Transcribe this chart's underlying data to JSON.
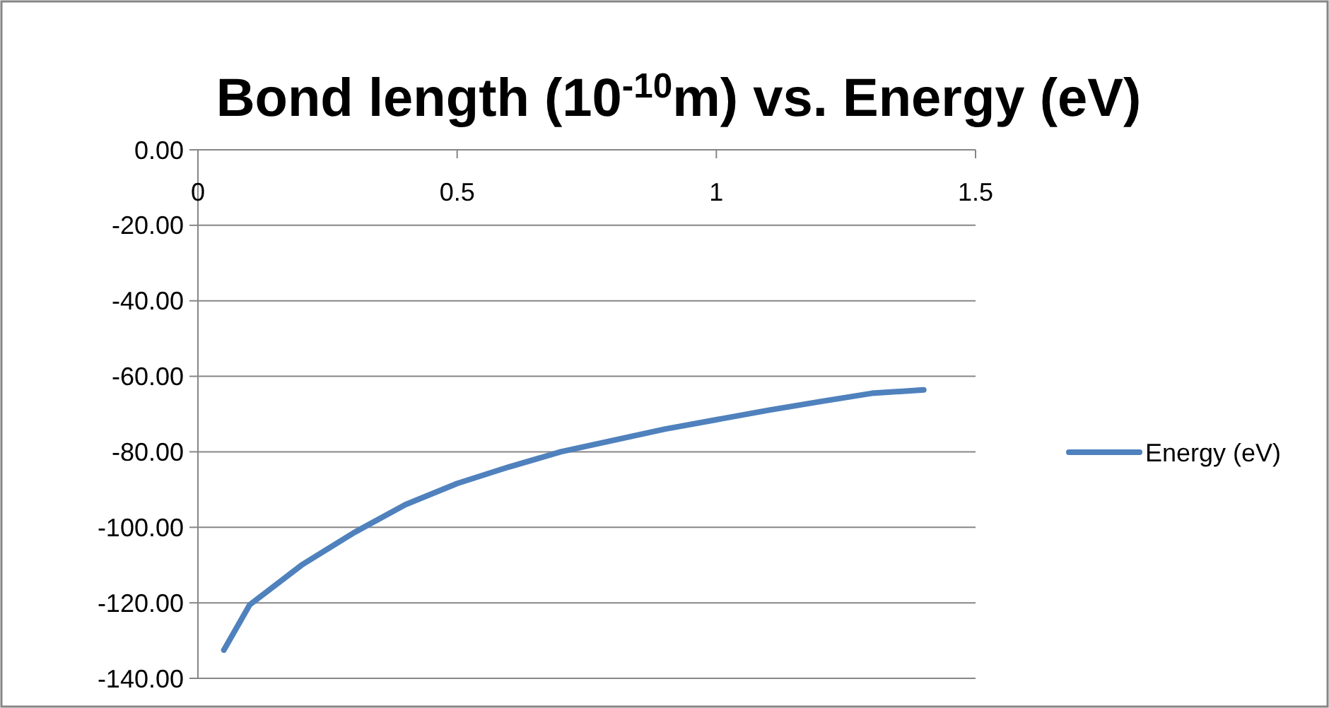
{
  "chart_data": {
    "type": "line",
    "title": "Bond length (10$^{-10}$m) vs. Energy (eV)",
    "x": [
      0.05,
      0.1,
      0.2,
      0.3,
      0.4,
      0.5,
      0.6,
      0.7,
      0.8,
      0.9,
      1.0,
      1.1,
      1.2,
      1.3,
      1.4
    ],
    "series": [
      {
        "name": "Energy (eV)",
        "color": "#4f81bd",
        "values": [
          -132.5,
          -120.5,
          -110,
          -101.5,
          -94,
          -88.4,
          -84,
          -80,
          -77,
          -74,
          -71.5,
          -69,
          -66.7,
          -64.5,
          -63.6
        ]
      }
    ],
    "xlim": [
      0,
      1.5
    ],
    "xticks": [
      0,
      0.5,
      1,
      1.5
    ],
    "ylim": [
      -140,
      0
    ],
    "yticks": [
      {
        "value": 0,
        "label": "0.00"
      },
      {
        "value": -20,
        "label": "-20.00"
      },
      {
        "value": -40,
        "label": "-40.00"
      },
      {
        "value": -60,
        "label": "-60.00"
      },
      {
        "value": -80,
        "label": "-80.00"
      },
      {
        "value": -100,
        "label": "-100.00"
      },
      {
        "value": -120,
        "label": "-120.00"
      },
      {
        "value": -140,
        "label": "-140.00"
      }
    ],
    "grid": "y",
    "legend": "right",
    "marker": "none",
    "line_style": "solid"
  }
}
